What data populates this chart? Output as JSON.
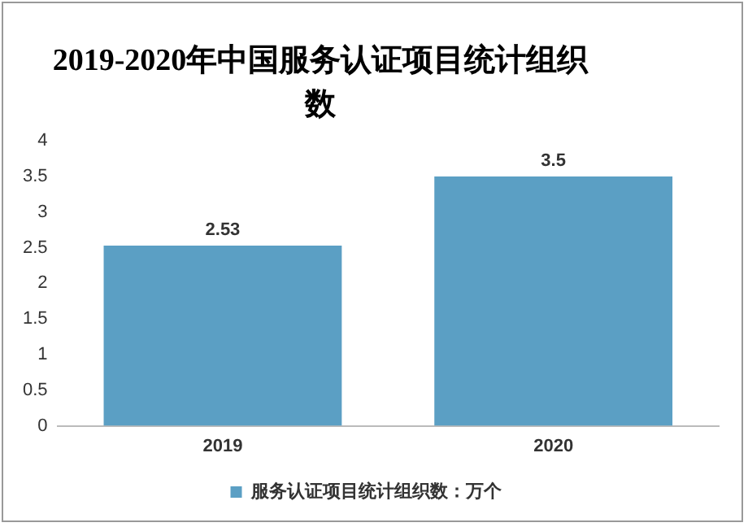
{
  "chart_data": {
    "type": "bar",
    "title": "2019-2020年中国服务认证项目统计组织数",
    "categories": [
      "2019",
      "2020"
    ],
    "series": [
      {
        "name": "服务认证项目统计组织数：万个",
        "color": "#5b9fc4",
        "values": [
          2.53,
          3.5
        ]
      }
    ],
    "ylim": [
      0,
      4
    ],
    "yticks": [
      0,
      0.5,
      1,
      1.5,
      2,
      2.5,
      3,
      3.5,
      4
    ],
    "grid": false,
    "legend": "bottom",
    "data_labels": true
  }
}
